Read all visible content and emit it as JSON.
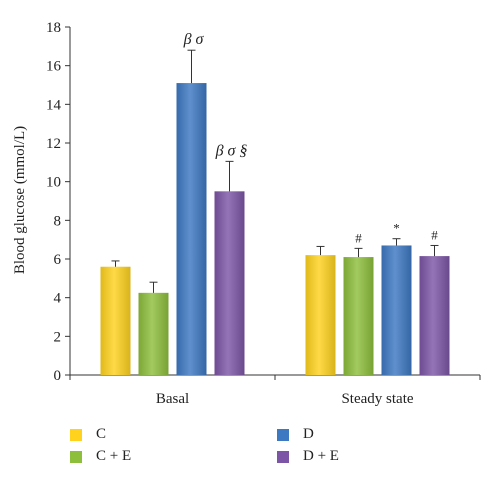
{
  "chart_data": {
    "type": "bar",
    "ylabel": "Blood glucose (mmol/L)",
    "xlabel": "",
    "ylim": [
      0,
      18
    ],
    "yticks": [
      "0",
      "2",
      "4",
      "6",
      "8",
      "10",
      "12",
      "14",
      "16",
      "18"
    ],
    "categories": [
      "Basal",
      "Steady state"
    ],
    "series": [
      {
        "name": "C",
        "color": "#FFD21E",
        "values": [
          5.6,
          6.2
        ],
        "errors": [
          0.3,
          0.45
        ],
        "annotations": [
          "",
          ""
        ]
      },
      {
        "name": "C + E",
        "color": "#8DBE3C",
        "values": [
          4.25,
          6.1
        ],
        "errors": [
          0.55,
          0.45
        ],
        "annotations": [
          "",
          "#"
        ]
      },
      {
        "name": "D",
        "color": "#3D78C2",
        "values": [
          15.1,
          6.7
        ],
        "errors": [
          1.7,
          0.35
        ],
        "annotations": [
          "β σ",
          "*"
        ]
      },
      {
        "name": "D + E",
        "color": "#7D55A6",
        "values": [
          9.5,
          6.15
        ],
        "errors": [
          1.55,
          0.55
        ],
        "annotations": [
          "β σ §",
          "#"
        ]
      }
    ],
    "grid": false,
    "legend_position": "bottom"
  }
}
